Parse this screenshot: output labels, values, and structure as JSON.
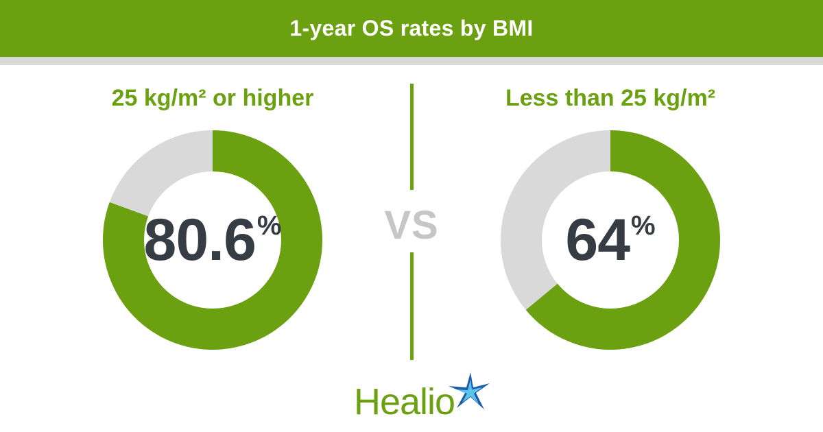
{
  "header": {
    "title": "1-year OS rates by BMI"
  },
  "colors": {
    "accent": "#6ba111",
    "track": "#d9d9d9",
    "text": "#353c44",
    "vs": "#c6c6c6",
    "star_blue": "#1f5ca8",
    "star_light": "#5cc3ee"
  },
  "chart_data": {
    "type": "pie",
    "charts": [
      {
        "label": "25 kg/m² or higher",
        "value": 80.6,
        "value_text": "80.6",
        "unit": "%"
      },
      {
        "label": "Less than 25 kg/m²",
        "value": 64,
        "value_text": "64",
        "unit": "%"
      }
    ]
  },
  "comparison": {
    "vs_label": "VS"
  },
  "brand": {
    "name": "Healio",
    "icon": "star-icon"
  }
}
